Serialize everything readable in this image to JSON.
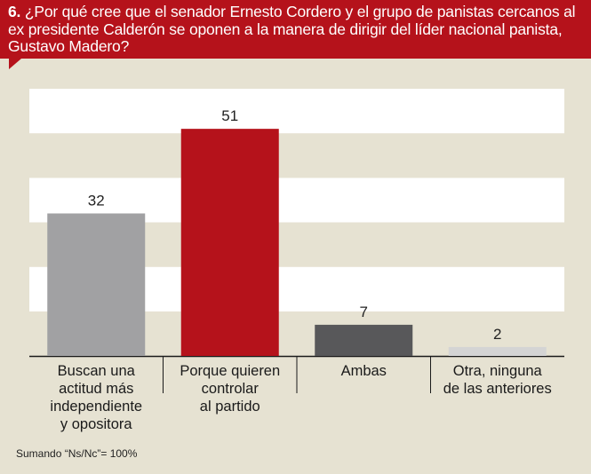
{
  "question": {
    "number": "6.",
    "text": "¿Por qué cree que el senador Ernesto Cordero y el grupo de panistas cercanos al ex presidente Calderón se oponen a la manera de dirigir del líder nacional panista, Gustavo Madero?"
  },
  "footnote": "Sumando “Ns/Nc”= 100%",
  "chart_data": {
    "type": "bar",
    "categories": [
      [
        "Buscan una",
        "actitud más",
        "independiente",
        "y opositora"
      ],
      [
        "Porque quieren",
        "controlar",
        "al partido"
      ],
      [
        "Ambas"
      ],
      [
        "Otra, ninguna",
        "de las anteriores"
      ]
    ],
    "values": [
      32,
      51,
      7,
      2
    ],
    "data_labels": [
      "32",
      "51",
      "7",
      "2"
    ],
    "colors": [
      "#a1a1a3",
      "#b5121b",
      "#58585a",
      "#d4d4d4"
    ],
    "ylim": [
      0,
      60
    ],
    "grid": "horizontal-bands",
    "band_colors": [
      "#ffffff",
      "#e6e2d2"
    ]
  }
}
